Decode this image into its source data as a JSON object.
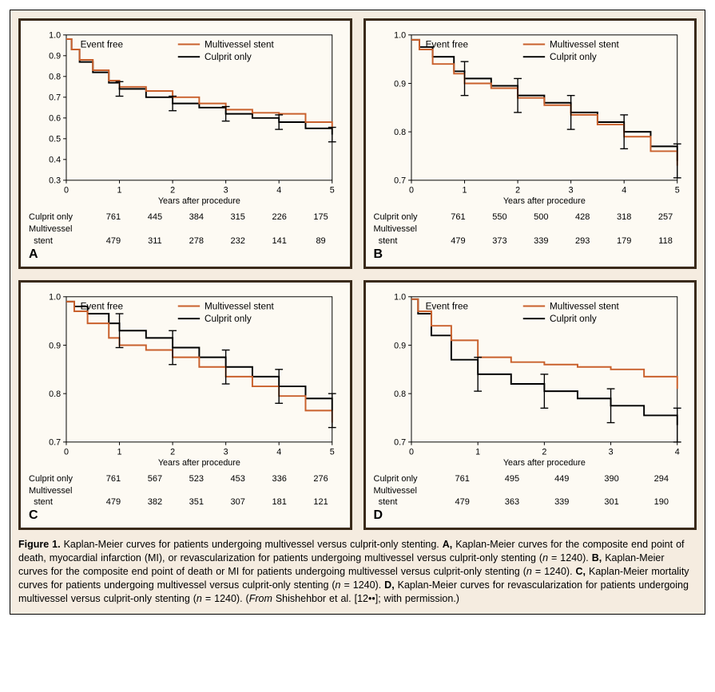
{
  "figureLabel": "Figure 1.",
  "captionParts": {
    "lead": "Kaplan-Meier curves for patients undergoing multivessel versus culprit-only stenting. ",
    "A": "Kaplan-Meier curves for the composite end point of death, myocardial infarction (MI), or revascularization for patients undergoing multivessel versus culprit-only stenting (",
    "B": "Kaplan-Meier curves for the composite end point of death or MI for patients undergoing multivessel versus culprit-only stenting (",
    "C": "Kaplan-Meier mortality curves for patients undergoing multivessel versus culprit-only stenting (",
    "D": "Kaplan-Meier curves for revascularization for patients undergoing multivessel versus culprit-only stenting (",
    "n": "n",
    "nval": " = 1240). ",
    "from": "(From Shishehbor et al. [12••]; with permission.)"
  },
  "common": {
    "eventFreeLabel": "Event free",
    "legendMulti": "Multivessel stent",
    "legendCulprit": "Culprit only",
    "xAxisLabel": "Years after procedure",
    "riskRowLabelCulprit": "Culprit only",
    "riskRowLabelMultiLine1": "Multivessel",
    "riskRowLabelMultiLine2": "stent",
    "colorMulti": "#c9602c",
    "colorCulprit": "#000000",
    "axisColor": "#000000",
    "tickFontSize": 11,
    "labelFontSize": 11,
    "legendFontSize": 12,
    "lineWidth": 2,
    "errBarHalfHeight": 0.035,
    "errBarCapPx": 5,
    "plotBg": "#fdfaf3"
  },
  "panels": [
    {
      "id": "A",
      "xlim": [
        0,
        5
      ],
      "xticks": [
        0,
        1,
        2,
        3,
        4,
        5
      ],
      "ylim": [
        0.3,
        1.0
      ],
      "yticks": [
        0.3,
        0.4,
        0.5,
        0.6,
        0.7,
        0.8,
        0.9,
        1.0
      ],
      "multi": {
        "x": [
          0,
          0.1,
          0.25,
          0.5,
          0.8,
          1,
          1.5,
          2,
          2.5,
          3,
          3.5,
          4,
          4.5,
          5
        ],
        "y": [
          0.98,
          0.93,
          0.88,
          0.83,
          0.78,
          0.75,
          0.73,
          0.7,
          0.67,
          0.64,
          0.625,
          0.62,
          0.58,
          0.55
        ]
      },
      "culprit": {
        "x": [
          0,
          0.1,
          0.25,
          0.5,
          0.8,
          1,
          1.5,
          2,
          2.5,
          3,
          3.5,
          4,
          4.5,
          5
        ],
        "y": [
          0.98,
          0.93,
          0.87,
          0.82,
          0.77,
          0.74,
          0.7,
          0.67,
          0.65,
          0.62,
          0.6,
          0.58,
          0.55,
          0.52
        ]
      },
      "errX": [
        1,
        2,
        3,
        4,
        5
      ],
      "riskCulprit": [
        761,
        445,
        384,
        315,
        226,
        175
      ],
      "riskMulti": [
        479,
        311,
        278,
        232,
        141,
        89
      ]
    },
    {
      "id": "B",
      "xlim": [
        0,
        5
      ],
      "xticks": [
        0,
        1,
        2,
        3,
        4,
        5
      ],
      "ylim": [
        0.7,
        1.0
      ],
      "yticks": [
        0.7,
        0.8,
        0.9,
        1.0
      ],
      "multi": {
        "x": [
          0,
          0.15,
          0.4,
          0.8,
          1,
          1.5,
          2,
          2.5,
          3,
          3.5,
          4,
          4.5,
          5
        ],
        "y": [
          0.99,
          0.97,
          0.94,
          0.92,
          0.9,
          0.89,
          0.87,
          0.855,
          0.835,
          0.815,
          0.79,
          0.76,
          0.73
        ]
      },
      "culprit": {
        "x": [
          0,
          0.15,
          0.4,
          0.8,
          1,
          1.5,
          2,
          2.5,
          3,
          3.5,
          4,
          4.5,
          5
        ],
        "y": [
          0.99,
          0.975,
          0.955,
          0.925,
          0.91,
          0.895,
          0.875,
          0.86,
          0.84,
          0.82,
          0.8,
          0.77,
          0.74
        ]
      },
      "errX": [
        1,
        2,
        3,
        4,
        5
      ],
      "riskCulprit": [
        761,
        550,
        500,
        428,
        318,
        257
      ],
      "riskMulti": [
        479,
        373,
        339,
        293,
        179,
        118
      ]
    },
    {
      "id": "C",
      "xlim": [
        0,
        5
      ],
      "xticks": [
        0,
        1,
        2,
        3,
        4,
        5
      ],
      "ylim": [
        0.7,
        1.0
      ],
      "yticks": [
        0.7,
        0.8,
        0.9,
        1.0
      ],
      "multi": {
        "x": [
          0,
          0.15,
          0.4,
          0.8,
          1,
          1.5,
          2,
          2.5,
          3,
          3.5,
          4,
          4.5,
          5
        ],
        "y": [
          0.99,
          0.97,
          0.945,
          0.915,
          0.9,
          0.89,
          0.875,
          0.855,
          0.835,
          0.815,
          0.795,
          0.765,
          0.74
        ]
      },
      "culprit": {
        "x": [
          0,
          0.15,
          0.4,
          0.8,
          1,
          1.5,
          2,
          2.5,
          3,
          3.5,
          4,
          4.5,
          5
        ],
        "y": [
          0.99,
          0.98,
          0.965,
          0.945,
          0.93,
          0.915,
          0.895,
          0.875,
          0.855,
          0.835,
          0.815,
          0.79,
          0.765
        ]
      },
      "errX": [
        1,
        2,
        3,
        4,
        5
      ],
      "riskCulprit": [
        761,
        567,
        523,
        453,
        336,
        276
      ],
      "riskMulti": [
        479,
        382,
        351,
        307,
        181,
        121
      ]
    },
    {
      "id": "D",
      "xlim": [
        0,
        4
      ],
      "xticks": [
        0,
        1,
        2,
        3,
        4
      ],
      "ylim": [
        0.7,
        1.0
      ],
      "yticks": [
        0.7,
        0.8,
        0.9,
        1.0
      ],
      "multi": {
        "x": [
          0,
          0.1,
          0.3,
          0.6,
          1,
          1.5,
          2,
          2.5,
          3,
          3.5,
          4
        ],
        "y": [
          0.995,
          0.97,
          0.94,
          0.91,
          0.875,
          0.865,
          0.86,
          0.855,
          0.85,
          0.835,
          0.81
        ]
      },
      "culprit": {
        "x": [
          0,
          0.1,
          0.3,
          0.6,
          1,
          1.5,
          2,
          2.5,
          3,
          3.5,
          4
        ],
        "y": [
          0.995,
          0.965,
          0.92,
          0.87,
          0.84,
          0.82,
          0.805,
          0.79,
          0.775,
          0.755,
          0.735
        ]
      },
      "errX": [
        1,
        2,
        3,
        4
      ],
      "riskCulprit": [
        761,
        495,
        449,
        390,
        294
      ],
      "riskMulti": [
        479,
        363,
        339,
        301,
        190
      ]
    }
  ]
}
